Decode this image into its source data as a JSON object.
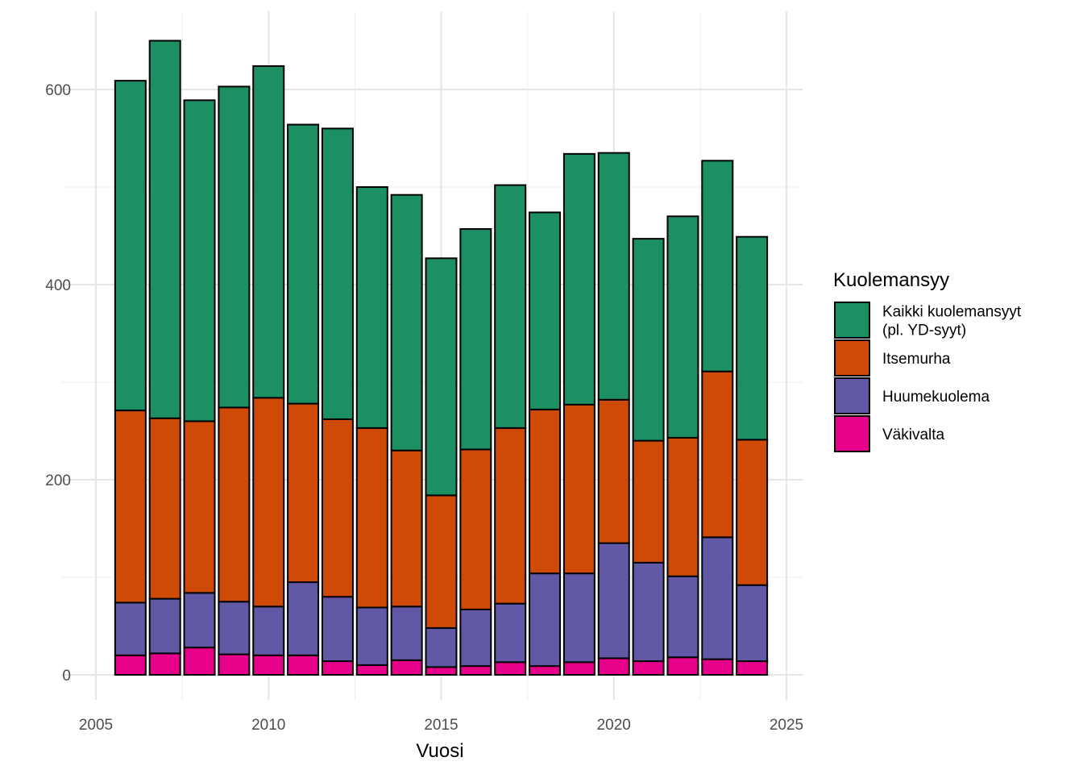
{
  "chart_data": {
    "type": "bar",
    "stacked": true,
    "x": [
      2006,
      2007,
      2008,
      2009,
      2010,
      2011,
      2012,
      2013,
      2014,
      2015,
      2016,
      2017,
      2018,
      2019,
      2020,
      2021,
      2022,
      2023,
      2024
    ],
    "series": [
      {
        "name": "Väkivalta",
        "color": "#E7008A",
        "values": [
          20,
          22,
          28,
          21,
          20,
          20,
          14,
          10,
          15,
          8,
          9,
          13,
          9,
          13,
          17,
          14,
          18,
          16,
          14
        ]
      },
      {
        "name": "Huumekuolema",
        "color": "#6159A6",
        "values": [
          54,
          56,
          56,
          54,
          50,
          75,
          66,
          59,
          55,
          40,
          58,
          60,
          95,
          91,
          118,
          101,
          83,
          125,
          78
        ]
      },
      {
        "name": "Itsemurha",
        "color": "#CF4A07",
        "values": [
          197,
          185,
          176,
          199,
          214,
          183,
          182,
          184,
          160,
          136,
          164,
          180,
          168,
          173,
          147,
          125,
          142,
          170,
          149
        ]
      },
      {
        "name": "Kaikki kuolemansyyt (pl. YD-syyt)",
        "legend_lines": [
          "Kaikki kuolemansyyt",
          "(pl. YD-syyt)"
        ],
        "color": "#1C8F63",
        "values": [
          338,
          387,
          329,
          329,
          340,
          286,
          298,
          247,
          262,
          243,
          226,
          249,
          202,
          257,
          253,
          207,
          227,
          216,
          208
        ]
      }
    ],
    "legend_order": [
      "Kaikki kuolemansyyt (pl. YD-syyt)",
      "Itsemurha",
      "Huumekuolema",
      "Väkivalta"
    ],
    "xlabel": "Vuosi",
    "ylabel": "",
    "legend_title": "Kuolemansyy",
    "legend_position": "right",
    "xlim": [
      2005,
      2025
    ],
    "ylim": [
      0,
      650
    ],
    "x_ticks": [
      2005,
      2010,
      2015,
      2020,
      2025
    ],
    "y_ticks": [
      0,
      200,
      400,
      600
    ],
    "grid": true
  }
}
